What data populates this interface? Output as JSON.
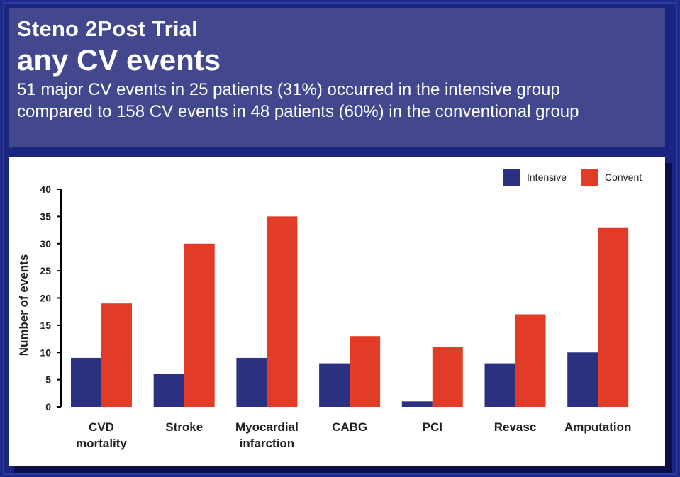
{
  "header": {
    "title_line1": "Steno   2Post Trial",
    "title_line2": "any CV events",
    "subtitle_line1": "51 major CV events in 25 patients (31%) occurred in the intensive group",
    "subtitle_line2": "compared to 158 CV events in 48 patients (60%) in the conventional group"
  },
  "colors": {
    "intensive": "#2b3080",
    "conventional": "#e23b27",
    "header_bg": "#42478e",
    "page_bg": "#1e2a8a"
  },
  "chart_data": {
    "type": "bar",
    "title": "",
    "xlabel": "",
    "ylabel": "Number of events",
    "ylim": [
      0,
      40
    ],
    "yticks": [
      0,
      5,
      10,
      15,
      20,
      25,
      30,
      35,
      40
    ],
    "grid": false,
    "legend_position": "top-right",
    "categories": [
      [
        "CVD",
        "mortality"
      ],
      [
        "Stroke"
      ],
      [
        "Myocardial",
        "infarction"
      ],
      [
        "CABG"
      ],
      [
        "PCI"
      ],
      [
        "Revasc"
      ],
      [
        "Amputation"
      ]
    ],
    "series": [
      {
        "name": "Intensive",
        "color": "#2b3080",
        "values": [
          9,
          6,
          9,
          8,
          1,
          8,
          10
        ]
      },
      {
        "name": "Convent",
        "color": "#e23b27",
        "values": [
          19,
          30,
          35,
          13,
          11,
          17,
          33
        ]
      }
    ]
  }
}
